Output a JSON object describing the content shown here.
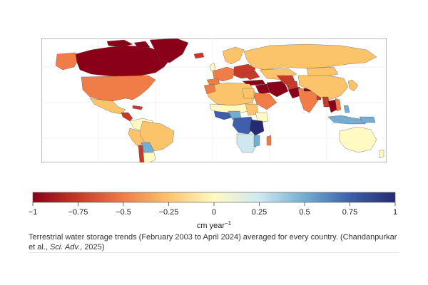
{
  "colorbar": {
    "colors": [
      "#8b0018",
      "#c73a29",
      "#f07c47",
      "#fbc46b",
      "#fff9c2",
      "#cfe8f0",
      "#74add1",
      "#3e5fab",
      "#262b71"
    ],
    "ticks": [
      "−1",
      "−0.75",
      "−0.5",
      "−0.25",
      "0",
      "0.25",
      "0.5",
      "0.75",
      "1"
    ],
    "unit_text": "cm year",
    "unit_sup": "−1"
  },
  "caption": {
    "text": "Terrestrial water storage trends (February 2003 to April 2024) averaged for every country. (Chandanpurkar et al., ",
    "journal": "Sci. Adv.",
    "year": ", 2025)"
  },
  "map_colors": {
    "ocean": "#ffffff",
    "grid": "#e6e6e6",
    "border": "#555555"
  }
}
